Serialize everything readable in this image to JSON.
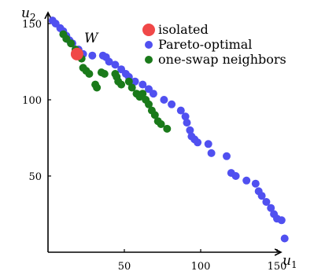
{
  "chart_data": {
    "type": "scatter",
    "xlabel": "u",
    "xlabel_sub": "1",
    "ylabel": "u",
    "ylabel_sub": "2",
    "xlim": [
      0,
      160
    ],
    "ylim": [
      0,
      155
    ],
    "x_ticks": [
      50,
      100,
      150
    ],
    "y_ticks": [
      50,
      100,
      150
    ],
    "grid": false,
    "legend_position": "top-right",
    "annotation": {
      "text": "W",
      "x": 30,
      "y": 142
    },
    "series": [
      {
        "name": "isolated",
        "color": "#f04848",
        "points": [
          [
            19,
            130
          ]
        ]
      },
      {
        "name": "Pareto-optimal",
        "color": "#5050f0",
        "points": [
          [
            3,
            152
          ],
          [
            5,
            150
          ],
          [
            8,
            147
          ],
          [
            10,
            145
          ],
          [
            12,
            142
          ],
          [
            14,
            139
          ],
          [
            16,
            137
          ],
          [
            20,
            133
          ],
          [
            23,
            130
          ],
          [
            29,
            129
          ],
          [
            36,
            129
          ],
          [
            38,
            128
          ],
          [
            40,
            125
          ],
          [
            44,
            123
          ],
          [
            48,
            120
          ],
          [
            51,
            117
          ],
          [
            53,
            115
          ],
          [
            57,
            112
          ],
          [
            62,
            110
          ],
          [
            66,
            107
          ],
          [
            69,
            104
          ],
          [
            76,
            100
          ],
          [
            81,
            97
          ],
          [
            87,
            93
          ],
          [
            90,
            89
          ],
          [
            91,
            85
          ],
          [
            93,
            80
          ],
          [
            94,
            76
          ],
          [
            96,
            74
          ],
          [
            98,
            72
          ],
          [
            105,
            71
          ],
          [
            107,
            65
          ],
          [
            117,
            63
          ],
          [
            120,
            52
          ],
          [
            123,
            50
          ],
          [
            130,
            47
          ],
          [
            136,
            45
          ],
          [
            138,
            40
          ],
          [
            140,
            37
          ],
          [
            143,
            33
          ],
          [
            146,
            29
          ],
          [
            148,
            25
          ],
          [
            150,
            22
          ],
          [
            153,
            21
          ],
          [
            155,
            9
          ]
        ]
      },
      {
        "name": "one-swap neighbors",
        "color": "#1a7a1a",
        "points": [
          [
            10,
            143
          ],
          [
            12,
            140
          ],
          [
            15,
            137
          ],
          [
            18,
            133
          ],
          [
            22,
            127
          ],
          [
            23,
            121
          ],
          [
            25,
            119
          ],
          [
            27,
            117
          ],
          [
            31,
            110
          ],
          [
            32,
            108
          ],
          [
            35,
            118
          ],
          [
            37,
            117
          ],
          [
            44,
            117
          ],
          [
            45,
            115
          ],
          [
            46,
            112
          ],
          [
            48,
            110
          ],
          [
            53,
            112
          ],
          [
            55,
            108
          ],
          [
            58,
            104
          ],
          [
            60,
            102
          ],
          [
            62,
            104
          ],
          [
            64,
            100
          ],
          [
            66,
            97
          ],
          [
            68,
            93
          ],
          [
            70,
            90
          ],
          [
            72,
            86
          ],
          [
            74,
            84
          ],
          [
            78,
            81
          ]
        ]
      }
    ]
  }
}
